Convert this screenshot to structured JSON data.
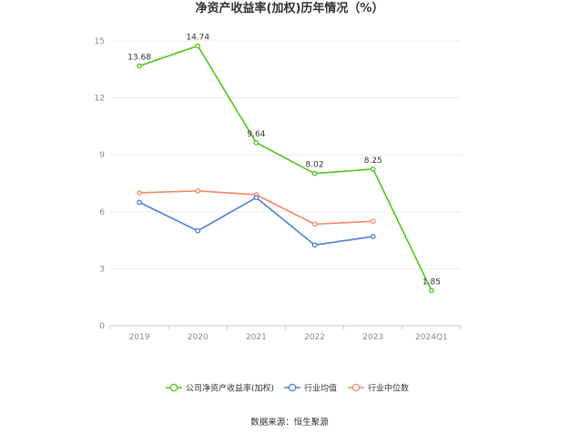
{
  "chart_data": {
    "type": "line",
    "title": "净资产收益率(加权)历年情况（%）",
    "categories": [
      "2019",
      "2020",
      "2021",
      "2022",
      "2023",
      "2024Q1"
    ],
    "ylim": [
      0,
      15
    ],
    "yticks": [
      0,
      3,
      6,
      9,
      12,
      15
    ],
    "grid": true,
    "legend_placement": "bottom-center",
    "series": [
      {
        "name": "公司净资产收益率(加权)",
        "color": "#52c41a",
        "values": [
          13.68,
          14.74,
          9.64,
          8.02,
          8.25,
          1.85
        ],
        "show_labels": true,
        "labels": [
          "13.68",
          "14.74",
          "9.64",
          "8.02",
          "8.25",
          "1.85"
        ]
      },
      {
        "name": "行业均值",
        "color": "#4a7fd9",
        "values": [
          6.5,
          5.0,
          6.75,
          4.25,
          4.7,
          null
        ],
        "show_labels": false
      },
      {
        "name": "行业中位数",
        "color": "#f4876a",
        "values": [
          7.0,
          7.1,
          6.9,
          5.35,
          5.5,
          null
        ],
        "show_labels": false
      }
    ],
    "source": "数据来源：恒生聚源"
  }
}
